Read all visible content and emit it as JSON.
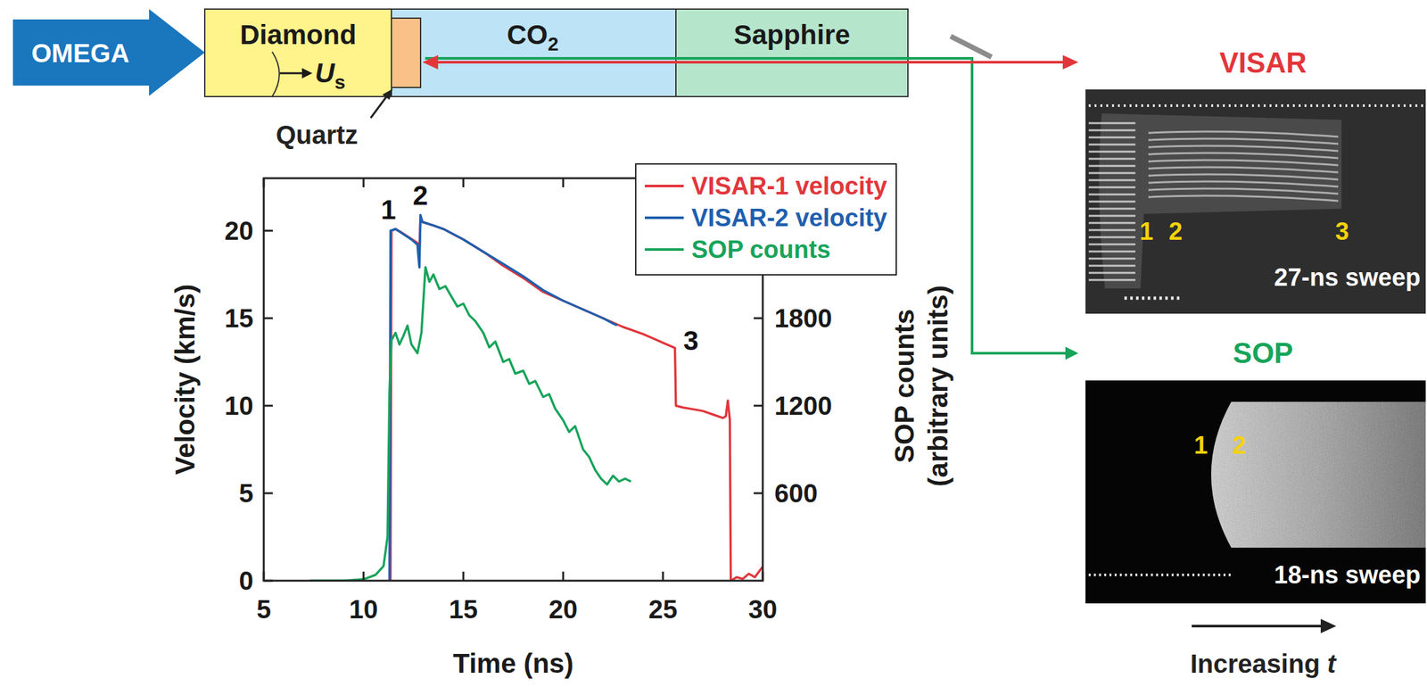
{
  "chart_data": {
    "type": "line",
    "xlabel": "Time (ns)",
    "ylabel": "Velocity (km/s)",
    "y2label": [
      "SOP counts",
      "(arbitrary units)"
    ],
    "xlim": [
      5,
      30
    ],
    "xticks": [
      5,
      10,
      15,
      20,
      25,
      30
    ],
    "ylim": [
      0,
      23
    ],
    "yticks": [
      0,
      5,
      10,
      15,
      20
    ],
    "y2lim": [
      0,
      2760
    ],
    "y2ticks": [
      600,
      1200,
      1800
    ],
    "legend": "top-right",
    "series": [
      {
        "name": "VISAR-1 velocity",
        "color": "#e2363c",
        "x": [
          11.35,
          11.4,
          11.6,
          11.9,
          12.3,
          12.7,
          12.8,
          12.85,
          12.95,
          13.5,
          14,
          15,
          16,
          17,
          18,
          19,
          20,
          21,
          22,
          23,
          24,
          25,
          25.6,
          25.65,
          26,
          26.5,
          27,
          27.5,
          28,
          28.15,
          28.25,
          28.35,
          28.4,
          28.7,
          29,
          29.3,
          29.6,
          29.8,
          30
        ],
        "values": [
          0,
          20.0,
          20.1,
          19.9,
          19.6,
          19.3,
          18.9,
          20.6,
          20.5,
          20.3,
          20.1,
          19.5,
          18.8,
          18.0,
          17.3,
          16.5,
          16.0,
          15.5,
          15.0,
          14.5,
          14.1,
          13.6,
          13.3,
          10.0,
          9.9,
          9.8,
          9.7,
          9.5,
          9.3,
          9.4,
          10.3,
          9.2,
          0,
          0.2,
          0.1,
          0.4,
          0.2,
          0.5,
          0.8
        ]
      },
      {
        "name": "VISAR-2 velocity",
        "color": "#1f5fae",
        "x": [
          11.3,
          11.35,
          11.6,
          12,
          12.4,
          12.7,
          12.75,
          12.8,
          12.85,
          12.95,
          13.5,
          14,
          15,
          16,
          17,
          18,
          19,
          20,
          21,
          22,
          22.5,
          22.7
        ],
        "values": [
          0,
          20.0,
          20.1,
          19.8,
          19.5,
          19.2,
          18.5,
          17.9,
          20.9,
          20.5,
          20.3,
          20.1,
          19.5,
          18.8,
          18.1,
          17.4,
          16.6,
          16.0,
          15.5,
          15.0,
          14.7,
          14.6
        ]
      },
      {
        "name": "SOP counts",
        "color": "#17a45a",
        "axis": "y2",
        "x": [
          7.3,
          9,
          10,
          10.6,
          11,
          11.2,
          11.3,
          11.4,
          11.6,
          11.8,
          12,
          12.2,
          12.4,
          12.7,
          12.9,
          13.1,
          13.3,
          13.5,
          13.8,
          14.1,
          14.4,
          14.7,
          15,
          15.3,
          15.6,
          16,
          16.3,
          16.6,
          17,
          17.3,
          17.6,
          18,
          18.3,
          18.6,
          19,
          19.3,
          19.6,
          20,
          20.3,
          20.6,
          21,
          21.3,
          21.6,
          21.9,
          22.2,
          22.5,
          22.8,
          23.1,
          23.4
        ],
        "values": [
          0,
          0,
          10,
          40,
          100,
          300,
          1300,
          1650,
          1700,
          1620,
          1680,
          1750,
          1620,
          1560,
          1700,
          2150,
          2050,
          2100,
          2000,
          2020,
          1950,
          1880,
          1900,
          1820,
          1780,
          1700,
          1600,
          1640,
          1500,
          1520,
          1420,
          1440,
          1350,
          1370,
          1260,
          1280,
          1180,
          1100,
          1020,
          1060,
          900,
          850,
          760,
          700,
          660,
          720,
          680,
          700,
          680
        ]
      }
    ],
    "annotations": [
      {
        "text": "1",
        "x": 11.25,
        "y": 21.2
      },
      {
        "text": "2",
        "x": 12.85,
        "y": 22.0
      },
      {
        "text": "3",
        "x": 26.4,
        "y": 13.7
      }
    ]
  },
  "diagram": {
    "driver": "OMEGA",
    "diamond": "Diamond",
    "shock_velocity": {
      "text": "U",
      "sub": "s"
    },
    "quartz": "Quartz",
    "co2": {
      "text": "CO",
      "sub": "2"
    },
    "sapphire": "Sapphire"
  },
  "visar_image": {
    "title": "VISAR",
    "labels": [
      "1",
      "2",
      "3"
    ],
    "sweep": "27-ns sweep"
  },
  "sop_image": {
    "title": "SOP",
    "labels": [
      "1",
      "2"
    ],
    "sweep": "18-ns sweep"
  },
  "time_arrow": {
    "text": "Increasing",
    "var": "t"
  }
}
